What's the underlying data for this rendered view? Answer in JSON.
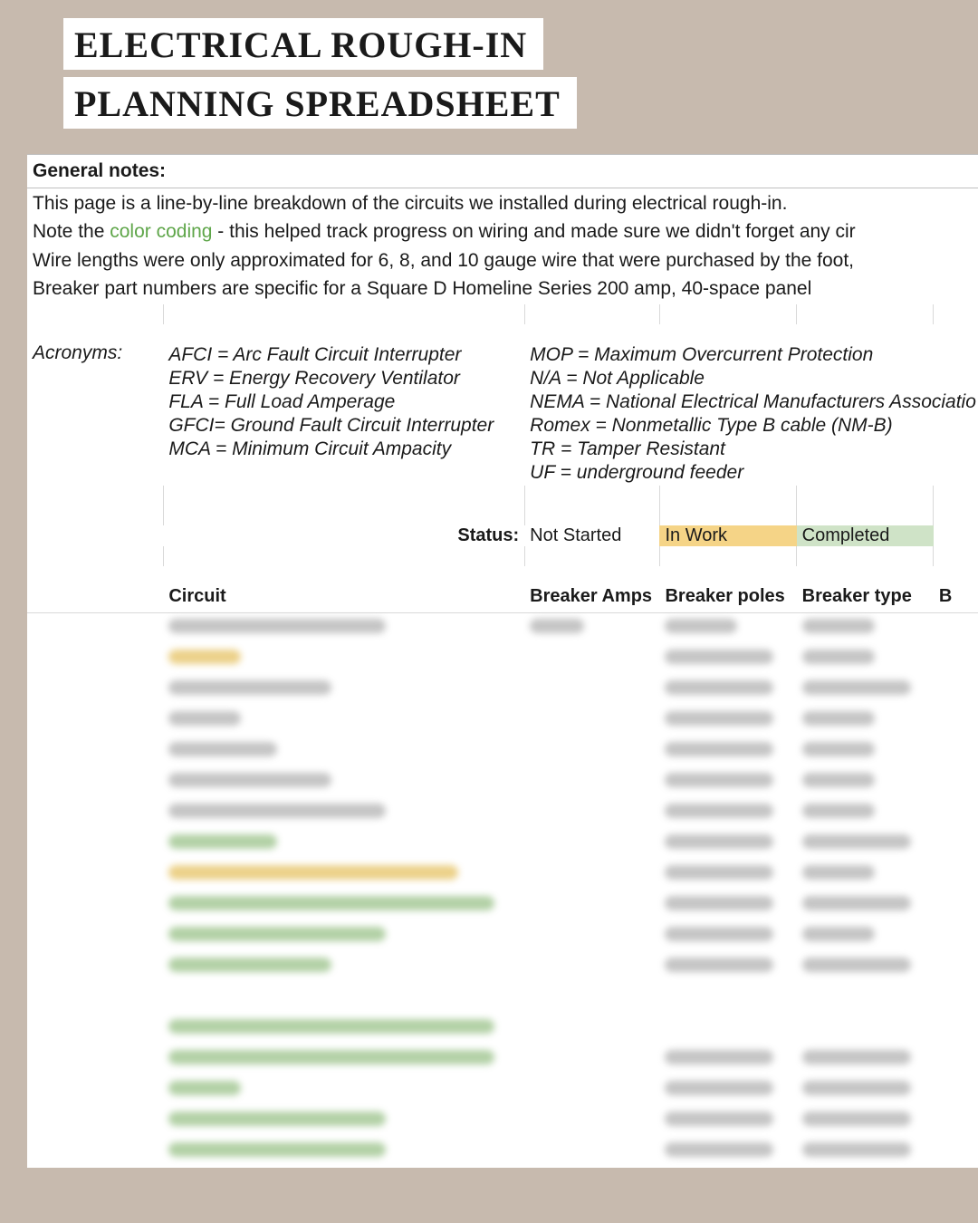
{
  "title": {
    "line1": "ELECTRICAL ROUGH-IN",
    "line2": "PLANNING SPREADSHEET",
    "font_family": "Georgia",
    "font_size_pt": 40,
    "bg_color": "#ffffff",
    "text_color": "#000000"
  },
  "page": {
    "bg_color": "#c7baae",
    "sheet_bg": "#ffffff",
    "grid_color": "#d9d9d9"
  },
  "general": {
    "label": "General notes:",
    "lines": [
      "This page is a line-by-line breakdown of the circuits we installed during electrical rough-in.",
      "Note the |color coding| - this helped track progress on wiring and made sure we didn't forget any cir",
      "Wire lengths were only approximated for 6, 8, and 10 gauge wire that were purchased by the foot,",
      "Breaker part numbers are specific for a Square D Homeline Series 200 amp, 40-space panel"
    ],
    "highlight_color": "#5fa64a"
  },
  "acronyms": {
    "label": "Acronyms:",
    "left": [
      "AFCI = Arc Fault Circuit Interrupter",
      "ERV = Energy Recovery Ventilator",
      "FLA = Full Load Amperage",
      "GFCI= Ground Fault Circuit Interrupter",
      "MCA = Minimum Circuit Ampacity"
    ],
    "right": [
      "MOP = Maximum Overcurrent Protection",
      "N/A = Not Applicable",
      "NEMA = National Electrical Manufacturers Associatio",
      "Romex = Nonmetallic Type B cable (NM-B)",
      "TR = Tamper Resistant",
      "UF = underground feeder"
    ]
  },
  "status": {
    "label": "Status:",
    "options": [
      {
        "label": "Not Started",
        "fill": "#ffffff"
      },
      {
        "label": "In Work",
        "fill": "#f5d487"
      },
      {
        "label": "Completed",
        "fill": "#cfe3c7"
      }
    ]
  },
  "columns": {
    "c1": "Circuit",
    "c2": "Breaker Amps",
    "c3": "Breaker poles",
    "c4": "Breaker type",
    "c5": "B"
  },
  "rows": [
    {
      "circuit_w": "w240",
      "fill": "none",
      "amp_w": "w60",
      "pole_w": "w80",
      "type_w": "w80"
    },
    {
      "circuit_w": "w80",
      "fill": "yellow",
      "amp_w": "",
      "pole_w": "w120",
      "type_w": "w80"
    },
    {
      "circuit_w": "w180",
      "fill": "none",
      "amp_w": "",
      "pole_w": "w120",
      "type_w": "w120"
    },
    {
      "circuit_w": "w80",
      "fill": "none",
      "amp_w": "",
      "pole_w": "w120",
      "type_w": "w80"
    },
    {
      "circuit_w": "w120",
      "fill": "none",
      "amp_w": "",
      "pole_w": "w120",
      "type_w": "w80"
    },
    {
      "circuit_w": "w180",
      "fill": "none",
      "amp_w": "",
      "pole_w": "w120",
      "type_w": "w80"
    },
    {
      "circuit_w": "w240",
      "fill": "none",
      "amp_w": "",
      "pole_w": "w120",
      "type_w": "w80"
    },
    {
      "circuit_w": "w120",
      "fill": "green",
      "amp_w": "",
      "pole_w": "w120",
      "type_w": "w120"
    },
    {
      "circuit_w": "w320",
      "fill": "yellow",
      "amp_w": "",
      "pole_w": "w120",
      "type_w": "w80"
    },
    {
      "circuit_w": "w360",
      "fill": "green",
      "amp_w": "",
      "pole_w": "w120",
      "type_w": "w120"
    },
    {
      "circuit_w": "w240",
      "fill": "green",
      "amp_w": "",
      "pole_w": "w120",
      "type_w": "w80"
    },
    {
      "circuit_w": "w180",
      "fill": "green",
      "amp_w": "",
      "pole_w": "w120",
      "type_w": "w120"
    },
    {
      "blank": true
    },
    {
      "circuit_w": "w360",
      "fill": "green",
      "amp_w": "",
      "pole_w": "",
      "type_w": ""
    },
    {
      "circuit_w": "w360",
      "fill": "green",
      "amp_w": "",
      "pole_w": "w120",
      "type_w": "w120"
    },
    {
      "circuit_w": "w80",
      "fill": "green",
      "amp_w": "",
      "pole_w": "w120",
      "type_w": "w120"
    },
    {
      "circuit_w": "w240",
      "fill": "green",
      "amp_w": "",
      "pole_w": "w120",
      "type_w": "w120"
    },
    {
      "circuit_w": "w240",
      "fill": "green",
      "amp_w": "",
      "pole_w": "w120",
      "type_w": "w120"
    }
  ]
}
